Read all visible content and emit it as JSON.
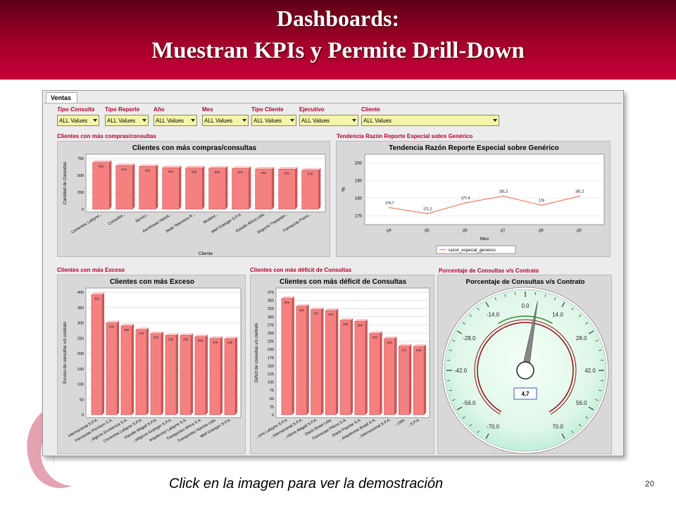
{
  "slide": {
    "title_line1": "Dashboards:",
    "title_line2": "Muestran KPIs y Permite Drill-Down",
    "caption": "Click en la imagen para ver la demostración",
    "page_number": "20"
  },
  "app": {
    "tab": "Ventas",
    "filters": [
      {
        "label": "Tipo Consulta",
        "value": "ALL Values"
      },
      {
        "label": "Tipo Reporte",
        "value": "ALL Values"
      },
      {
        "label": "Año",
        "value": "ALL Values"
      },
      {
        "label": "Mes",
        "value": "ALL Values"
      },
      {
        "label": "Tipo Cliente",
        "value": "ALL Values"
      },
      {
        "label": "Ejecutivo",
        "value": "ALL Values"
      },
      {
        "label": "Cliente",
        "value": "ALL Values"
      }
    ],
    "panel_titles": {
      "p1": "Clientes con más compras/consultas",
      "p2": "Tendencia Razón Reporte Especial sobre Genérico",
      "p3": "Clientes con más Exceso",
      "p4": "Clientes con más déficit de Consultas",
      "p5": "Porcentaje de Consultas v/s Contrato"
    }
  },
  "colors": {
    "bar": "#f58080",
    "bar_top": "#ffc2c2",
    "bar_side": "#c85858",
    "line": "#e8836a",
    "accent": "#b0002c"
  },
  "chart_data": [
    {
      "type": "bar",
      "title": "Clientes con más compras/consultas",
      "xlabel": "Cliente",
      "ylabel": "Cantidad de Consultas",
      "ylim": [
        0,
        750
      ],
      "yticks": [
        0,
        250,
        500,
        750
      ],
      "categories": [
        "Cementos Lafayne...",
        "Consultor...",
        "Servici...",
        "Aerolíneas Hanck...",
        "Sede Televisiva R...",
        "Mudanz...",
        "Mell Grainger S.P.A.",
        "Estudio Africa Ltda.",
        "Seguros Trasandin...",
        "Farmacias Premi..."
      ],
      "values": [
        692,
        644,
        632,
        612,
        609,
        606,
        602,
        593,
        591,
        576
      ]
    },
    {
      "type": "line",
      "title": "Tendencia Razón Reporte Especial sobre Genérico",
      "xlabel": "Mes",
      "ylabel": "%",
      "ylim": [
        165,
        205
      ],
      "yticks": [
        170,
        180,
        190,
        200
      ],
      "categories": [
        "04",
        "05",
        "06",
        "07",
        "08",
        "09"
      ],
      "series": [
        {
          "name": "razon_especial_generico",
          "values": [
            174.7,
            171.2,
            177.4,
            181.2,
            176,
            181.2
          ]
        }
      ],
      "data_labels": [
        "174,7",
        "171,2",
        "177,4",
        "181,2",
        "176",
        "181,2"
      ]
    },
    {
      "type": "bar",
      "title": "Clientes con más Exceso",
      "ylabel": "Exceso de consultas v/s contrato",
      "ylim": [
        0,
        400
      ],
      "yticks": [
        0,
        50,
        100,
        150,
        200,
        250,
        300,
        350,
        400
      ],
      "categories": [
        "Internacional S.P.A.",
        "Farmacias Premium S.A.",
        "...lógicos Excelencia S.A.",
        "Cementos Lafayne S.P.A.",
        "Estudio Abigail S.P.A.",
        "...ológicos Grainger S.P.A.",
        "Arquitectos Lafayne S.A.",
        "Transportes Africa S.A.",
        "Transportes Hancks Ltda.",
        "Mell Grainger S.P.A."
      ],
      "values": [
        392,
        300,
        290,
        278,
        265,
        259,
        259,
        255,
        249,
        248
      ]
    },
    {
      "type": "bar",
      "title": "Clientes con más déficit de Consultas",
      "ylabel": "Déficit de consultas v/s contrato",
      "ylim": [
        0,
        375
      ],
      "yticks": [
        0,
        25,
        50,
        75,
        100,
        125,
        150,
        175,
        200,
        225,
        250,
        275,
        300,
        325,
        350,
        375
      ],
      "categories": [
        "...ores Lafayne S.P.A.",
        "...Internacional S.P.A.",
        "...mbres Abigail S.P.A.",
        "Diario Brasil Ltda.",
        "Farmacias Piñera S.A.",
        "Diario Popular S.A.",
        "...Arquitectos Brasil S.A.",
        "...Internacional S.P.A.",
        "...Ltda.",
        "...S.P.A."
      ],
      "values": [
        356,
        332,
        322,
        319,
        289,
        286,
        249,
        233,
        210,
        209
      ]
    },
    {
      "type": "gauge",
      "title": "Porcentaje de Consultas v/s Contrato",
      "range": [
        -70,
        70
      ],
      "tick_labels": [
        "-70.0",
        "-56.0",
        "-42.0",
        "-28.0",
        "-14.0",
        "0.0",
        "14.0",
        "28.0",
        "42.0",
        "56.0",
        "70.0"
      ],
      "value": 4.7,
      "value_label": "4,7"
    }
  ]
}
